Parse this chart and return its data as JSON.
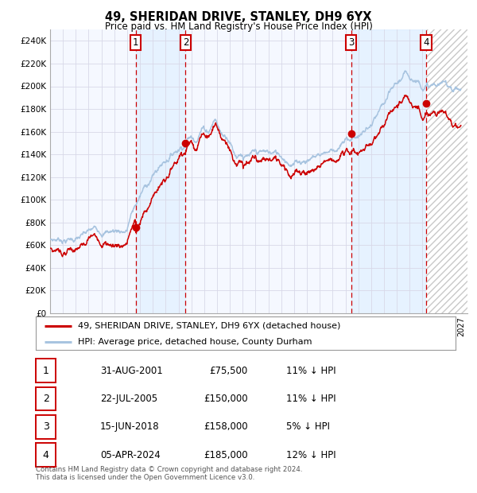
{
  "title": "49, SHERIDAN DRIVE, STANLEY, DH9 6YX",
  "subtitle": "Price paid vs. HM Land Registry's House Price Index (HPI)",
  "xlim_start": 1995.0,
  "xlim_end": 2027.5,
  "ylim": [
    0,
    250000
  ],
  "ytick_step": 20000,
  "background_color": "#ffffff",
  "plot_bg_color": "#f5f8ff",
  "grid_color": "#d8d8e8",
  "hpi_line_color": "#a8c4e0",
  "price_line_color": "#cc0000",
  "sale_dot_color": "#cc0000",
  "sales": [
    {
      "label": "1",
      "date_str": "31-AUG-2001",
      "year": 2001.667,
      "price": 75500,
      "pct": "11%"
    },
    {
      "label": "2",
      "date_str": "22-JUL-2005",
      "year": 2005.55,
      "price": 150000,
      "pct": "11%"
    },
    {
      "label": "3",
      "date_str": "15-JUN-2018",
      "year": 2018.45,
      "price": 158000,
      "pct": "5%"
    },
    {
      "label": "4",
      "date_str": "05-APR-2024",
      "year": 2024.27,
      "price": 185000,
      "pct": "12%"
    }
  ],
  "future_start": 2024.27,
  "legend_line1": "49, SHERIDAN DRIVE, STANLEY, DH9 6YX (detached house)",
  "legend_line2": "HPI: Average price, detached house, County Durham",
  "footnote": "Contains HM Land Registry data © Crown copyright and database right 2024.\nThis data is licensed under the Open Government Licence v3.0."
}
